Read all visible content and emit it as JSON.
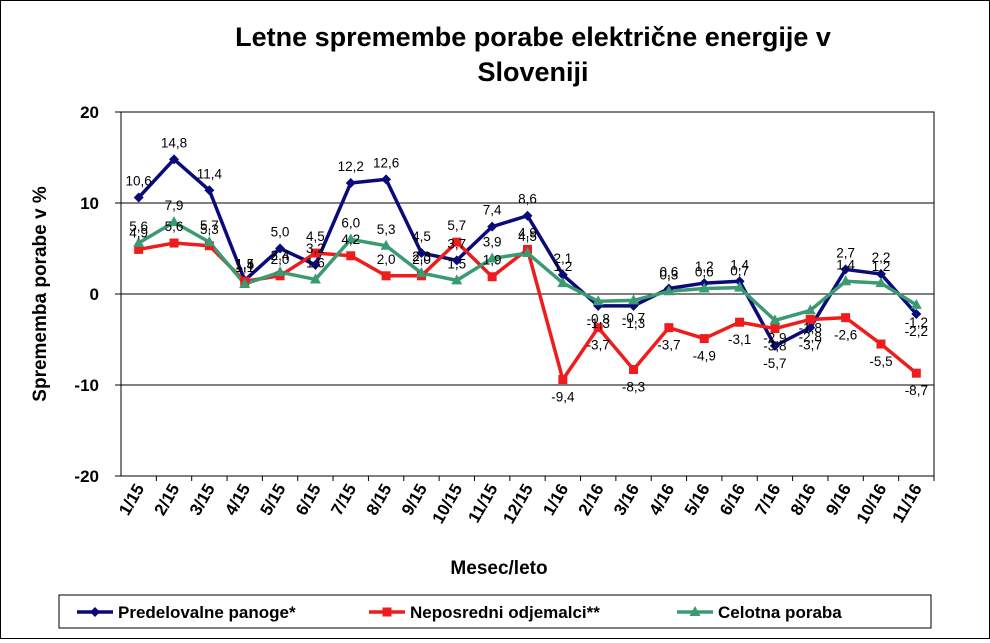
{
  "chart_data": {
    "type": "line",
    "title_line1": "Letne spremembe porabe električne energije v",
    "title_line2": "Sloveniji",
    "xlabel": "Mesec/leto",
    "ylabel": "Sprememba porabe v %",
    "ylim": [
      -20,
      20
    ],
    "yticks": [
      20,
      10,
      0,
      -10,
      -20
    ],
    "grid": true,
    "legend_position": "bottom",
    "categories": [
      "1/15",
      "2/15",
      "3/15",
      "4/15",
      "5/15",
      "6/15",
      "7/15",
      "8/15",
      "9/15",
      "10/15",
      "11/15",
      "12/15",
      "1/16",
      "2/16",
      "3/16",
      "4/16",
      "5/16",
      "6/16",
      "7/16",
      "8/16",
      "9/16",
      "10/16",
      "11/16"
    ],
    "series": [
      {
        "name": "Predelovalne panoge*",
        "color": "#0a0a7a",
        "marker": "diamond",
        "values": [
          10.6,
          14.8,
          11.4,
          1.5,
          5.0,
          3.2,
          12.2,
          12.6,
          4.5,
          3.7,
          7.4,
          8.6,
          2.1,
          -1.3,
          -1.3,
          0.6,
          1.2,
          1.4,
          -5.7,
          -3.7,
          2.7,
          2.2,
          -2.2
        ],
        "labels": [
          "10,6",
          "14,8",
          "11,4",
          "1,5",
          "5,0",
          "3,2",
          "12,2",
          "12,6",
          "4,5",
          "3,7",
          "7,4",
          "8,6",
          "2,1",
          "-1,3",
          "-1,3",
          "0,6",
          "1,2",
          "1,4",
          "-5,7",
          "-3,7",
          "2,7",
          "2,2",
          "-2,2"
        ]
      },
      {
        "name": "Neposredni odjemalci**",
        "color": "#ee1c1c",
        "marker": "square",
        "values": [
          4.9,
          5.6,
          5.3,
          1.4,
          2.0,
          4.5,
          4.2,
          2.0,
          2.0,
          5.7,
          1.9,
          4.9,
          -9.4,
          -3.7,
          -8.3,
          -3.7,
          -4.9,
          -3.1,
          -3.8,
          -2.8,
          -2.6,
          -5.5,
          -8.7
        ],
        "labels": [
          "4,9",
          "5,6",
          "5,3",
          "1,4",
          "2,0",
          "4,5",
          "4,2",
          "2,0",
          "2,0",
          "5,7",
          "1,9",
          "4,9",
          "-9,4",
          "-3,7",
          "-8,3",
          "-3,7",
          "-4,9",
          "-3,1",
          "-3,8",
          "-2,8",
          "-2,6",
          "-5,5",
          "-8,7"
        ]
      },
      {
        "name": "Celotna poraba",
        "color": "#3a9a72",
        "marker": "triangle",
        "values": [
          5.6,
          7.9,
          5.7,
          1.1,
          2.4,
          1.6,
          6.0,
          5.3,
          2.3,
          1.5,
          3.9,
          4.5,
          1.2,
          -0.8,
          -0.7,
          0.3,
          0.6,
          0.7,
          -2.9,
          -1.8,
          1.4,
          1.2,
          -1.2
        ],
        "labels": [
          "5,6",
          "7,9",
          "5,7",
          "1,1",
          "2,4",
          "1,6",
          "6,0",
          "5,3",
          "2,3",
          "1,5",
          "3,9",
          "4,5",
          "1,2",
          "-0,8",
          "-0,7",
          "0,3",
          "0,6",
          "0,7",
          "-2,9",
          "-1,8",
          "1,4",
          "1,2",
          "-1,2"
        ]
      }
    ]
  }
}
